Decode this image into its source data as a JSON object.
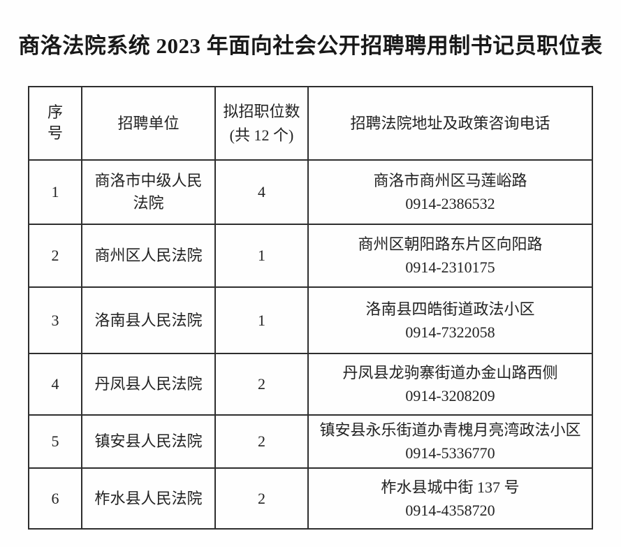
{
  "title": "商洛法院系统 2023 年面向社会公开招聘聘用制书记员职位表",
  "table": {
    "headers": {
      "seq": "序号",
      "unit": "招聘单位",
      "positions_line1": "拟招职位数",
      "positions_line2": "(共 12 个)",
      "contact": "招聘法院地址及政策咨询电话"
    },
    "rows": [
      {
        "no": "1",
        "unit": "商洛市中级人民法院",
        "positions": "4",
        "address": "商洛市商州区马莲峪路",
        "phone": "0914-2386532"
      },
      {
        "no": "2",
        "unit": "商州区人民法院",
        "positions": "1",
        "address": "商州区朝阳路东片区向阳路",
        "phone": "0914-2310175"
      },
      {
        "no": "3",
        "unit": "洛南县人民法院",
        "positions": "1",
        "address": "洛南县四皓街道政法小区",
        "phone": "0914-7322058"
      },
      {
        "no": "4",
        "unit": "丹凤县人民法院",
        "positions": "2",
        "address": "丹凤县龙驹寨街道办金山路西侧",
        "phone": "0914-3208209"
      },
      {
        "no": "5",
        "unit": "镇安县人民法院",
        "positions": "2",
        "address": "镇安县永乐街道办青槐月亮湾政法小区",
        "phone": "0914-5336770"
      },
      {
        "no": "6",
        "unit": "柞水县人民法院",
        "positions": "2",
        "address": "柞水县城中街 137 号",
        "phone": "0914-4358720"
      }
    ]
  },
  "colors": {
    "background": "#fefefe",
    "text": "#222222",
    "border": "#2e2e2e"
  }
}
